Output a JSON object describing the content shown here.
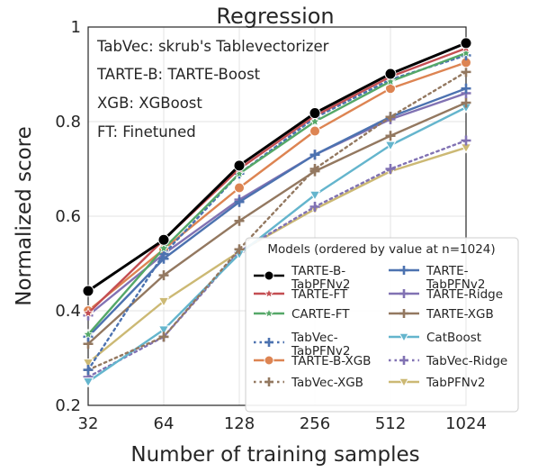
{
  "chart_data": {
    "type": "line",
    "title": "Regression",
    "xlabel": "Number of training samples",
    "ylabel": "Normalized score",
    "x_scale": "log2",
    "x": [
      32,
      64,
      128,
      256,
      512,
      1024
    ],
    "x_tick_labels": [
      "32",
      "64",
      "128",
      "256",
      "512",
      "1024"
    ],
    "ylim": [
      0.2,
      1.0
    ],
    "y_ticks": [
      0.2,
      0.4,
      0.6,
      0.8,
      1.0
    ],
    "y_tick_labels": [
      "0.2",
      "0.4",
      "0.6",
      "0.8",
      "1"
    ],
    "grid": true,
    "annotations": [
      "TabVec: skrub's Tablevectorizer",
      "TARTE-B: TARTE-Boost",
      "XGB: XGBoost",
      "FT: Finetuned"
    ],
    "legend": {
      "title": "Models (ordered by value at n=1024)",
      "placement": "lower-right",
      "columns": 2
    },
    "series": [
      {
        "name": "TARTE-B-\nTabPFNv2",
        "color": "#000000",
        "marker": "circle",
        "dash": "solid",
        "values": [
          0.442,
          0.55,
          0.707,
          0.818,
          0.901,
          0.966
        ]
      },
      {
        "name": "TARTE-FT",
        "color": "#c44e52",
        "marker": "star",
        "dash": "solid",
        "values": [
          0.395,
          0.55,
          0.7,
          0.812,
          0.895,
          0.955
        ]
      },
      {
        "name": "CARTE-FT",
        "color": "#55a868",
        "marker": "star",
        "dash": "solid",
        "values": [
          0.35,
          0.532,
          0.69,
          0.8,
          0.885,
          0.945
        ]
      },
      {
        "name": "TabVec-\nTabPFNv2",
        "color": "#4c72b0",
        "marker": "plus",
        "dash": "dotted",
        "values": [
          0.275,
          0.52,
          0.69,
          0.808,
          0.889,
          0.94
        ]
      },
      {
        "name": "TARTE-B-XGB",
        "color": "#dd8452",
        "marker": "circle",
        "dash": "solid",
        "values": [
          0.4,
          0.53,
          0.66,
          0.78,
          0.87,
          0.925
        ]
      },
      {
        "name": "TabVec-XGB",
        "color": "#937860",
        "marker": "plus",
        "dash": "dotted",
        "values": [
          0.275,
          0.345,
          0.53,
          0.7,
          0.81,
          0.905
        ]
      },
      {
        "name": "TARTE-\nTabPFNv2",
        "color": "#4c72b0",
        "marker": "plus",
        "dash": "solid",
        "values": [
          0.345,
          0.51,
          0.63,
          0.73,
          0.81,
          0.87
        ]
      },
      {
        "name": "TARTE-Ridge",
        "color": "#8172b3",
        "marker": "plus",
        "dash": "solid",
        "values": [
          0.39,
          0.52,
          0.635,
          0.73,
          0.805,
          0.86
        ]
      },
      {
        "name": "TARTE-XGB",
        "color": "#937860",
        "marker": "plus",
        "dash": "solid",
        "values": [
          0.33,
          0.475,
          0.59,
          0.695,
          0.77,
          0.84
        ]
      },
      {
        "name": "CatBoost",
        "color": "#64b5cd",
        "marker": "triangle-down",
        "dash": "solid",
        "values": [
          0.25,
          0.36,
          0.52,
          0.645,
          0.75,
          0.83
        ]
      },
      {
        "name": "TabVec-Ridge",
        "color": "#8172b3",
        "marker": "plus",
        "dash": "dotted",
        "values": [
          0.26,
          0.345,
          0.525,
          0.62,
          0.7,
          0.76
        ]
      },
      {
        "name": "TabPFNv2",
        "color": "#ccb974",
        "marker": "triangle-down",
        "dash": "solid",
        "values": [
          0.29,
          0.42,
          0.525,
          0.615,
          0.695,
          0.745
        ]
      }
    ]
  }
}
